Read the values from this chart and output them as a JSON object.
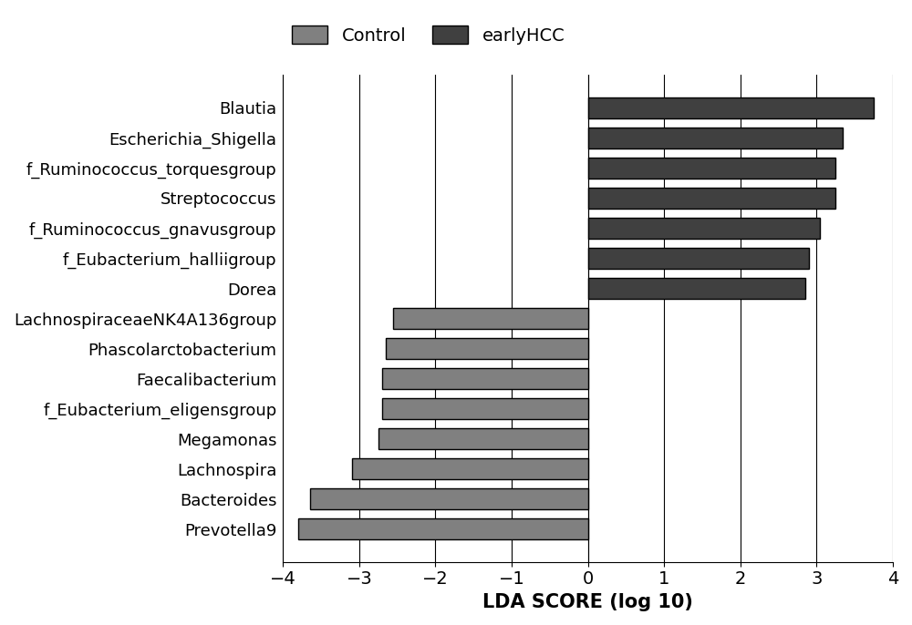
{
  "categories": [
    "Blautia",
    "Escherichia_Shigella",
    "f_Ruminococcus_torquesgroup",
    "Streptococcus",
    "f_Ruminococcus_gnavusgroup",
    "f_Eubacterium_halliigroup",
    "Dorea",
    "LachnospiraceaeNK4A136group",
    "Phascolarctobacterium",
    "Faecalibacterium",
    "f_Eubacterium_eligensgroup",
    "Megamonas",
    "Lachnospira",
    "Bacteroides",
    "Prevotella9"
  ],
  "values": [
    3.75,
    3.35,
    3.25,
    3.25,
    3.05,
    2.9,
    2.85,
    -2.55,
    -2.65,
    -2.7,
    -2.7,
    -2.75,
    -3.1,
    -3.65,
    -3.8
  ],
  "colors": [
    "#404040",
    "#404040",
    "#404040",
    "#404040",
    "#404040",
    "#404040",
    "#404040",
    "#808080",
    "#808080",
    "#808080",
    "#808080",
    "#808080",
    "#808080",
    "#808080",
    "#808080"
  ],
  "xlabel": "LDA SCORE (log 10)",
  "xlim": [
    -4,
    4
  ],
  "xticks": [
    -4,
    -3,
    -2,
    -1,
    0,
    1,
    2,
    3,
    4
  ],
  "control_color": "#808080",
  "earlyhcc_color": "#404040",
  "legend_control": "Control",
  "legend_earlyhcc": "earlyHCC",
  "bar_height": 0.7,
  "figsize": [
    10.0,
    6.86
  ],
  "dpi": 100
}
